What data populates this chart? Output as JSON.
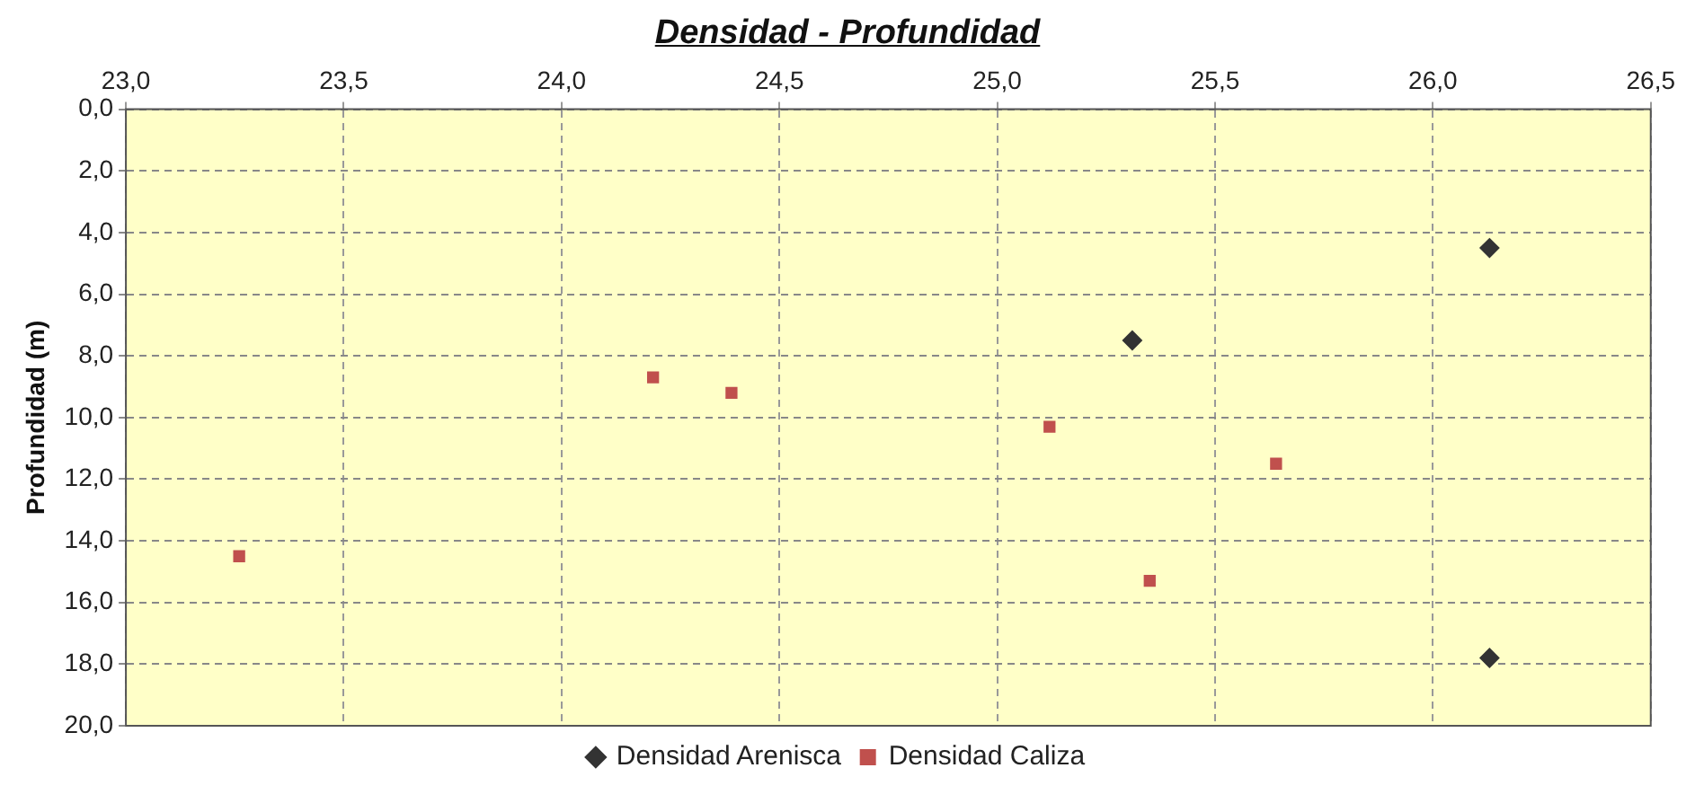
{
  "chart_data": {
    "type": "scatter",
    "title": "Densidad - Profundidad",
    "ylabel": "Profundidad (m)",
    "xlim": [
      23.0,
      26.5
    ],
    "xticks": [
      {
        "value": 23.0,
        "label": "23,0"
      },
      {
        "value": 23.5,
        "label": "23,5"
      },
      {
        "value": 24.0,
        "label": "24,0"
      },
      {
        "value": 24.5,
        "label": "24,5"
      },
      {
        "value": 25.0,
        "label": "25,0"
      },
      {
        "value": 25.5,
        "label": "25,5"
      },
      {
        "value": 26.0,
        "label": "26,0"
      },
      {
        "value": 26.5,
        "label": "26,5"
      }
    ],
    "ylim": [
      20.0,
      0.0
    ],
    "yticks": [
      {
        "value": 0,
        "label": "0,0"
      },
      {
        "value": 2,
        "label": "2,0"
      },
      {
        "value": 4,
        "label": "4,0"
      },
      {
        "value": 6,
        "label": "6,0"
      },
      {
        "value": 8,
        "label": "8,0"
      },
      {
        "value": 10,
        "label": "10,0"
      },
      {
        "value": 12,
        "label": "12,0"
      },
      {
        "value": 14,
        "label": "14,0"
      },
      {
        "value": 16,
        "label": "16,0"
      },
      {
        "value": 18,
        "label": "18,0"
      },
      {
        "value": 20,
        "label": "20,0"
      }
    ],
    "grid": true,
    "legend": "bottom",
    "line_style": "dashed",
    "series": [
      {
        "name": "Densidad Arenisca",
        "color": "#333333",
        "marker": "diamond",
        "x": [
          26.13,
          25.31,
          26.13
        ],
        "values": [
          4.5,
          7.5,
          17.8
        ]
      },
      {
        "name": "Densidad Caliza",
        "color": "#c0504d",
        "marker": "square",
        "x": [
          23.26,
          24.21,
          24.39,
          25.12,
          25.64,
          25.35
        ],
        "values": [
          14.5,
          8.7,
          9.2,
          10.3,
          11.5,
          15.3
        ]
      }
    ]
  }
}
